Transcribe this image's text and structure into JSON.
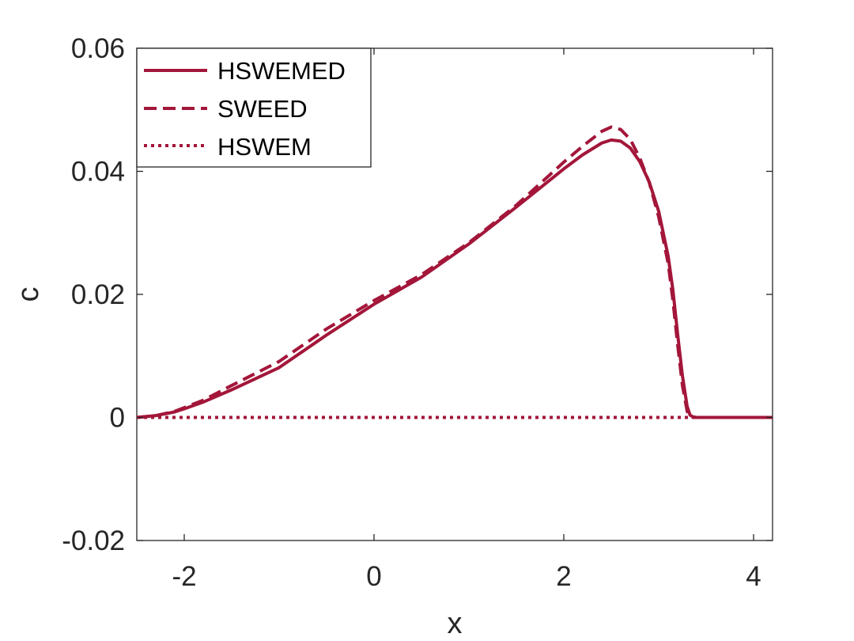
{
  "chart_data": {
    "type": "line",
    "xlabel": "x",
    "ylabel": "c",
    "xlim": [
      -2.5,
      4.2
    ],
    "ylim": [
      -0.02,
      0.06
    ],
    "xticks": [
      -2,
      0,
      2,
      4
    ],
    "xtick_labels": [
      "-2",
      "0",
      "2",
      "4"
    ],
    "yticks": [
      -0.02,
      0,
      0.02,
      0.04,
      0.06
    ],
    "ytick_labels": [
      "-0.02",
      "0",
      "0.02",
      "0.04",
      "0.06"
    ],
    "grid": false,
    "legend_position": "top-left",
    "line_color": "#a3163a",
    "series": [
      {
        "name": "HSWEMED",
        "style": "solid",
        "x": [
          -2.5,
          -2.3,
          -2.1,
          -2.0,
          -1.8,
          -1.5,
          -1.0,
          -0.5,
          0.0,
          0.5,
          1.0,
          1.5,
          2.0,
          2.2,
          2.4,
          2.5,
          2.6,
          2.7,
          2.8,
          2.9,
          3.0,
          3.1,
          3.15,
          3.2,
          3.25,
          3.3,
          3.33,
          3.36,
          3.4,
          3.5,
          4.2
        ],
        "y": [
          0.0,
          0.0003,
          0.0009,
          0.0014,
          0.0025,
          0.0045,
          0.0081,
          0.0134,
          0.0184,
          0.0228,
          0.0282,
          0.0342,
          0.0404,
          0.0427,
          0.0446,
          0.0451,
          0.0449,
          0.0438,
          0.0416,
          0.0383,
          0.0335,
          0.0262,
          0.0207,
          0.0135,
          0.0068,
          0.0018,
          0.0004,
          0.0001,
          0.0,
          0.0,
          0.0
        ]
      },
      {
        "name": "SWEED",
        "style": "dashed",
        "x": [
          -2.5,
          -2.3,
          -2.1,
          -2.0,
          -1.8,
          -1.5,
          -1.0,
          -0.5,
          0.0,
          0.5,
          1.0,
          1.5,
          2.0,
          2.2,
          2.4,
          2.5,
          2.6,
          2.7,
          2.8,
          2.9,
          3.0,
          3.1,
          3.15,
          3.2,
          3.25,
          3.3,
          3.33,
          3.36,
          3.4,
          3.5,
          4.2
        ],
        "y": [
          0.0,
          0.0003,
          0.001,
          0.0016,
          0.0028,
          0.0052,
          0.0091,
          0.0144,
          0.019,
          0.0232,
          0.0284,
          0.0345,
          0.0415,
          0.0441,
          0.0465,
          0.0472,
          0.0468,
          0.0452,
          0.0422,
          0.0382,
          0.0326,
          0.025,
          0.019,
          0.0118,
          0.0052,
          0.001,
          0.0002,
          0.0,
          0.0,
          0.0,
          0.0
        ]
      },
      {
        "name": "HSWEM",
        "style": "dotted",
        "x": [
          -2.5,
          4.2
        ],
        "y": [
          0.0,
          0.0
        ]
      }
    ]
  }
}
